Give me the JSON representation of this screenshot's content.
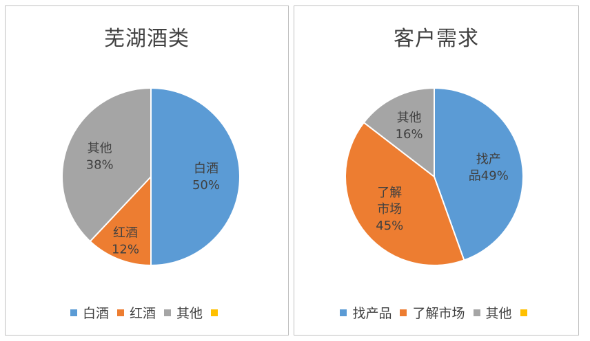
{
  "chart_data": [
    {
      "type": "pie",
      "title": "芜湖酒类",
      "slices": [
        {
          "label": "白酒",
          "value": 50,
          "color": "#5B9BD5",
          "data_label": [
            "白酒",
            "50%"
          ]
        },
        {
          "label": "红酒",
          "value": 12,
          "color": "#ED7D31",
          "data_label": [
            "红酒",
            "12%"
          ]
        },
        {
          "label": "其他",
          "value": 38,
          "color": "#A5A5A5",
          "data_label": [
            "其他",
            "38%"
          ]
        }
      ],
      "legend": [
        {
          "label": "白酒",
          "color": "#5B9BD5"
        },
        {
          "label": "红酒",
          "color": "#ED7D31"
        },
        {
          "label": "其他",
          "color": "#A5A5A5"
        },
        {
          "label": "",
          "color": "#FFC000"
        }
      ],
      "legend_position": "bottom"
    },
    {
      "type": "pie",
      "title": "客户需求",
      "slices": [
        {
          "label": "找产品",
          "value": 49,
          "color": "#5B9BD5",
          "data_label": [
            "找产",
            "品49%"
          ]
        },
        {
          "label": "了解市场",
          "value": 45,
          "color": "#ED7D31",
          "data_label": [
            "了解",
            "市场",
            "45%"
          ]
        },
        {
          "label": "其他",
          "value": 16,
          "color": "#A5A5A5",
          "data_label": [
            "其他",
            "16%"
          ]
        }
      ],
      "legend": [
        {
          "label": "找产品",
          "color": "#5B9BD5"
        },
        {
          "label": "了解市场",
          "color": "#ED7D31"
        },
        {
          "label": "其他",
          "color": "#A5A5A5"
        },
        {
          "label": "",
          "color": "#FFC000"
        }
      ],
      "legend_position": "bottom"
    }
  ]
}
